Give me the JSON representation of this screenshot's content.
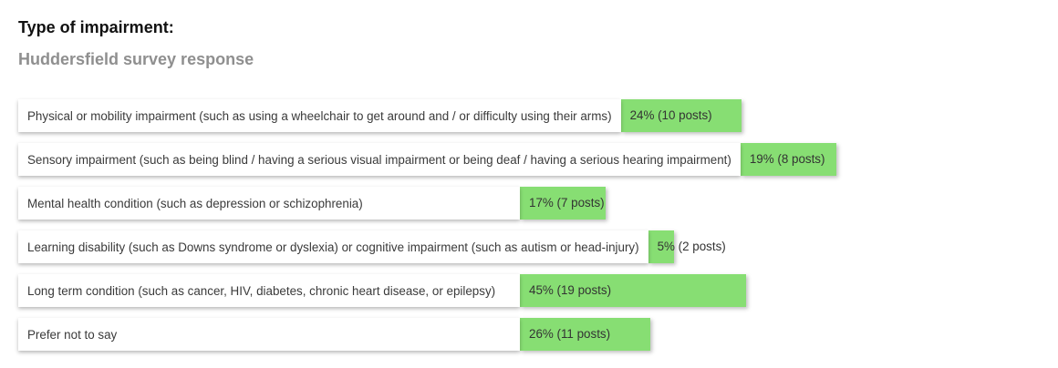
{
  "chart_data": {
    "type": "bar",
    "orientation": "horizontal",
    "title": "Type of impairment:",
    "subtitle": "Huddersfield survey response",
    "bar_color": "#87de73",
    "categories": [
      "Physical or mobility impairment (such as using a wheelchair to get around and / or difficulty using their arms)",
      "Sensory impairment (such as being blind / having a serious visual impairment or being deaf / having a serious hearing impairment)",
      "Mental health condition (such as depression or schizophrenia)",
      "Learning disability (such as Downs syndrome or dyslexia) or cognitive impairment (such as autism or head-injury)",
      "Long term condition (such as cancer, HIV, diabetes, chronic heart disease, or epilepsy)",
      "Prefer not to say"
    ],
    "values": [
      24,
      19,
      17,
      5,
      45,
      26
    ],
    "data_labels": [
      "24% (10 posts)",
      "19% (8 posts)",
      "17% (7 posts)",
      "5% (2 posts)",
      "45% (19 posts)",
      "26% (11 posts)"
    ],
    "unit": "%",
    "xlim": [
      0,
      100
    ]
  }
}
